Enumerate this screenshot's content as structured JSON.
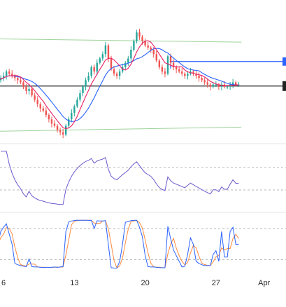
{
  "colors": {
    "background": "#ffffff",
    "channel": "#9ed39a",
    "candle_up": "#26a69a",
    "candle_down": "#ef5350",
    "ma_fast": "#e91e63",
    "ma_slow": "#2962ff",
    "level_line": "#2962ff",
    "support_line": "#222222",
    "rsi_line": "#6a5acd",
    "stoch_k": "#2962ff",
    "stoch_d": "#ff8a3d",
    "dashed": "#9aa0a6",
    "separator": "#e6e6e6"
  },
  "chart_data": [
    {
      "type": "candlestick",
      "pane": "price",
      "x": [
        "d1",
        "d2",
        "d3",
        "d4",
        "d5",
        "d6",
        "d7",
        "d8",
        "d9",
        "d10",
        "d11",
        "d12",
        "d13",
        "d14",
        "d15",
        "d16",
        "d17",
        "d18",
        "d19",
        "d20",
        "d21",
        "d22",
        "d23",
        "d24",
        "d25",
        "d26",
        "d27",
        "d28",
        "d29",
        "d30",
        "d31",
        "d32",
        "d33",
        "d34",
        "d35",
        "d36",
        "d37",
        "d38",
        "d39",
        "d40",
        "d41",
        "d42",
        "d43",
        "d44",
        "d45",
        "d46",
        "d47",
        "d48",
        "d49",
        "d50",
        "d51",
        "d52",
        "d53",
        "d54",
        "d55",
        "d56",
        "d57",
        "d58",
        "d59",
        "d60",
        "d61",
        "d62",
        "d63",
        "d64",
        "d65",
        "d66",
        "d67",
        "d68",
        "d69",
        "d70",
        "d71",
        "d72",
        "d73",
        "d74",
        "d75",
        "d76",
        "d77",
        "d78",
        "d79",
        "d80",
        "d81",
        "d82",
        "d83",
        "d84",
        "d85",
        "d86"
      ],
      "close": [
        120,
        121,
        122,
        124,
        123,
        122,
        121,
        120,
        119,
        117,
        115,
        116,
        113,
        111,
        109,
        107,
        106,
        104,
        102,
        100,
        99,
        97,
        96,
        95,
        99,
        102,
        105,
        108,
        111,
        114,
        117,
        120,
        122,
        126,
        124,
        128,
        130,
        132,
        136,
        130,
        125,
        123,
        122,
        124,
        126,
        128,
        130,
        134,
        138,
        142,
        140,
        138,
        136,
        135,
        134,
        132,
        129,
        126,
        124,
        123,
        131,
        128,
        126,
        125,
        124,
        123,
        122,
        123,
        124,
        123,
        122,
        121,
        120,
        119,
        118,
        117,
        118,
        118,
        117,
        118,
        117,
        117,
        118,
        119,
        118,
        118
      ],
      "ylim": [
        94,
        144
      ],
      "channel_upper": [
        [
          0,
          139
        ],
        [
          86,
          137.5
        ]
      ],
      "channel_lower": [
        [
          0,
          96.5
        ],
        [
          86,
          98.4
        ]
      ],
      "resistance_level": {
        "from": 61,
        "value": 128.6
      },
      "support_level": 117.3
    },
    {
      "type": "line",
      "pane": "rsi",
      "ylim": [
        0,
        100
      ],
      "guides": [
        30,
        70
      ]
    },
    {
      "type": "line",
      "pane": "stochastic",
      "ylim": [
        0,
        100
      ],
      "guides": [
        20,
        80
      ]
    },
    {
      "type": "axis",
      "x_ticks": [
        {
          "label": "6",
          "index": 2
        },
        {
          "label": "13",
          "index": 27
        },
        {
          "label": "20",
          "index": 52
        },
        {
          "label": "27",
          "index": 77
        },
        {
          "label": "Apr",
          "index": 94
        }
      ]
    }
  ]
}
